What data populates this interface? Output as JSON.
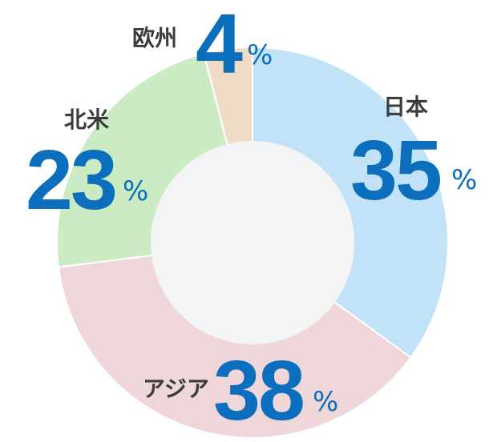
{
  "chart_data": {
    "type": "pie",
    "donut": true,
    "categories": [
      "日本",
      "アジア",
      "北米",
      "欧州"
    ],
    "values": [
      35,
      38,
      23,
      4
    ],
    "unit": "%",
    "colors": [
      "#c2e2f8",
      "#efd7d9",
      "#cbebc3",
      "#f0dbc4"
    ],
    "center_color": "#f3f4f6",
    "label_color": "#0b6fbd",
    "labels": [
      {
        "name": "日本",
        "value": "35",
        "unit": "%"
      },
      {
        "name": "アジア",
        "value": "38",
        "unit": "%"
      },
      {
        "name": "北米",
        "value": "23",
        "unit": "%"
      },
      {
        "name": "欧州",
        "value": "4",
        "unit": "%"
      }
    ]
  }
}
